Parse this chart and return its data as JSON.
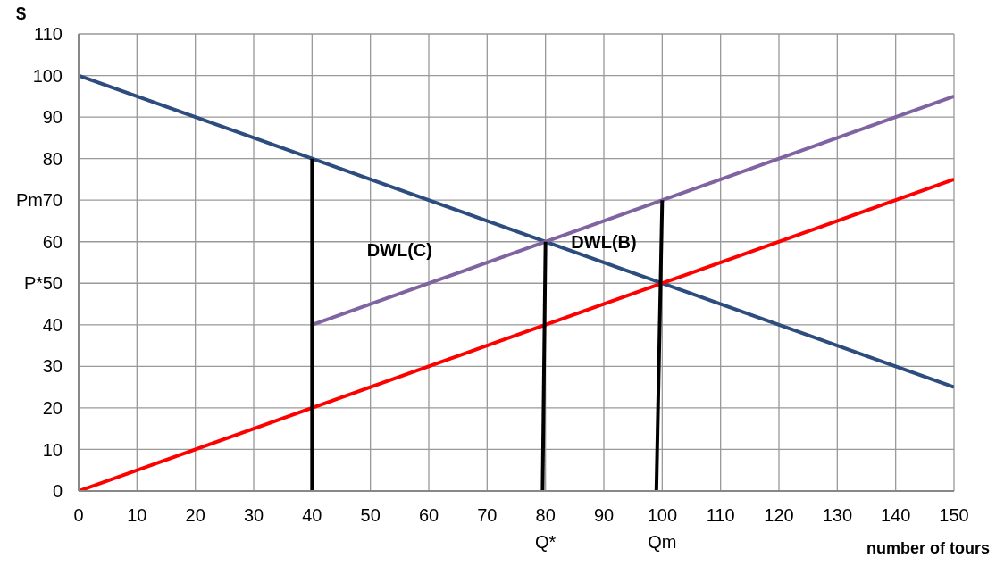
{
  "chart_data": {
    "type": "line",
    "xlabel": "number of tours",
    "ylabel": "$",
    "xlim": [
      0,
      150
    ],
    "xticks": [
      0,
      10,
      20,
      30,
      40,
      50,
      60,
      70,
      80,
      90,
      100,
      110,
      120,
      130,
      140,
      150
    ],
    "ylim": [
      0,
      110
    ],
    "yticks": [
      0,
      10,
      20,
      30,
      40,
      50,
      60,
      70,
      80,
      90,
      100,
      110
    ],
    "grid": true,
    "marker": "none",
    "line_style": "solid",
    "series": [
      {
        "color": "#2c4d7d",
        "x": [
          0,
          150
        ],
        "values": [
          100,
          25
        ]
      },
      {
        "color": "#ff0000",
        "x": [
          0,
          150
        ],
        "values": [
          0,
          75
        ]
      },
      {
        "color": "#8064a2",
        "x": [
          40,
          150
        ],
        "values": [
          40,
          95
        ]
      },
      {
        "color": "#000000",
        "x": [
          40,
          40
        ],
        "values": [
          0,
          80
        ]
      },
      {
        "color": "#000000",
        "x": [
          79.5,
          80
        ],
        "values": [
          0,
          60
        ]
      },
      {
        "color": "#000000",
        "x": [
          99,
          100
        ],
        "values": [
          0,
          70
        ]
      }
    ],
    "annotations": [
      "Pm",
      "P*",
      "Q*",
      "Qm",
      "DWL(C)",
      "DWL(B)"
    ]
  }
}
